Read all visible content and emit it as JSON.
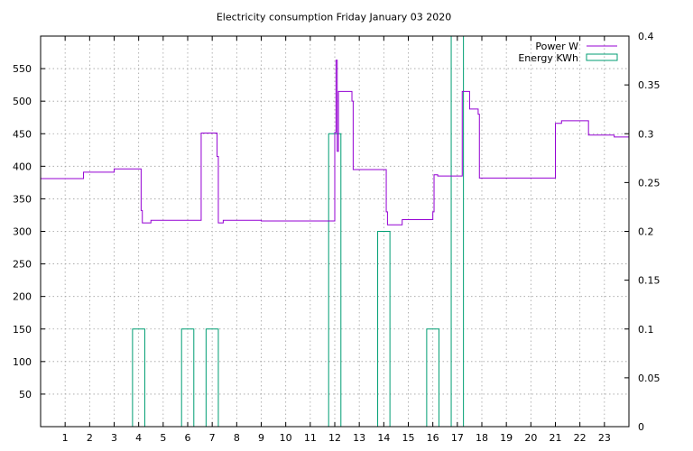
{
  "chart_data": {
    "type": "line",
    "title": "Electricity consumption Friday January 03 2020",
    "xlabel": "",
    "ylabel": "",
    "y2label": "",
    "xlim": [
      0,
      24
    ],
    "ylim": [
      0,
      600
    ],
    "y2lim": [
      0,
      0.4
    ],
    "grid": true,
    "legend_position": "top-right",
    "x_ticks": [
      1,
      2,
      3,
      4,
      5,
      6,
      7,
      8,
      9,
      10,
      11,
      12,
      13,
      14,
      15,
      16,
      17,
      18,
      19,
      20,
      21,
      22,
      23
    ],
    "y_ticks": [
      50,
      100,
      150,
      200,
      250,
      300,
      350,
      400,
      450,
      500,
      550
    ],
    "y2_ticks": [
      0,
      0.05,
      0.1,
      0.15,
      0.2,
      0.25,
      0.3,
      0.35,
      0.4
    ],
    "colors": {
      "power": "#9400d3",
      "energy": "#009e73"
    },
    "series": [
      {
        "name": "Power W",
        "axis": "left",
        "style": "steps",
        "points": [
          [
            0.0,
            381
          ],
          [
            1.75,
            381
          ],
          [
            1.75,
            391
          ],
          [
            3.0,
            391
          ],
          [
            3.0,
            396
          ],
          [
            4.1,
            396
          ],
          [
            4.1,
            332
          ],
          [
            4.15,
            332
          ],
          [
            4.15,
            313
          ],
          [
            4.5,
            313
          ],
          [
            4.5,
            317
          ],
          [
            6.55,
            317
          ],
          [
            6.55,
            451
          ],
          [
            7.2,
            451
          ],
          [
            7.2,
            415
          ],
          [
            7.25,
            415
          ],
          [
            7.25,
            313
          ],
          [
            7.45,
            313
          ],
          [
            7.45,
            317
          ],
          [
            9.0,
            317
          ],
          [
            9.0,
            316
          ],
          [
            12.0,
            316
          ],
          [
            12.0,
            452
          ],
          [
            12.05,
            452
          ],
          [
            12.05,
            563
          ],
          [
            12.1,
            563
          ],
          [
            12.1,
            423
          ],
          [
            12.15,
            423
          ],
          [
            12.15,
            515
          ],
          [
            12.7,
            515
          ],
          [
            12.7,
            500
          ],
          [
            12.75,
            500
          ],
          [
            12.75,
            395
          ],
          [
            14.1,
            395
          ],
          [
            14.1,
            330
          ],
          [
            14.15,
            330
          ],
          [
            14.15,
            310
          ],
          [
            14.75,
            310
          ],
          [
            14.75,
            318
          ],
          [
            16.0,
            318
          ],
          [
            16.0,
            330
          ],
          [
            16.05,
            330
          ],
          [
            16.05,
            387
          ],
          [
            16.2,
            387
          ],
          [
            16.2,
            385
          ],
          [
            17.2,
            385
          ],
          [
            17.2,
            515
          ],
          [
            17.5,
            515
          ],
          [
            17.5,
            488
          ],
          [
            17.85,
            488
          ],
          [
            17.85,
            480
          ],
          [
            17.9,
            480
          ],
          [
            17.9,
            382
          ],
          [
            21.0,
            382
          ],
          [
            21.0,
            466
          ],
          [
            21.25,
            466
          ],
          [
            21.25,
            470
          ],
          [
            22.35,
            470
          ],
          [
            22.35,
            448
          ],
          [
            23.4,
            448
          ],
          [
            23.4,
            445
          ],
          [
            24.0,
            445
          ]
        ]
      },
      {
        "name": "Energy KWh",
        "axis": "right",
        "style": "boxes",
        "box_width": 0.5,
        "centers": [
          4.0,
          6.0,
          7.0,
          12.0,
          14.0,
          16.0,
          17.0
        ],
        "values": [
          0.1,
          0.1,
          0.1,
          0.3,
          0.2,
          0.1,
          0.4
        ]
      }
    ]
  }
}
